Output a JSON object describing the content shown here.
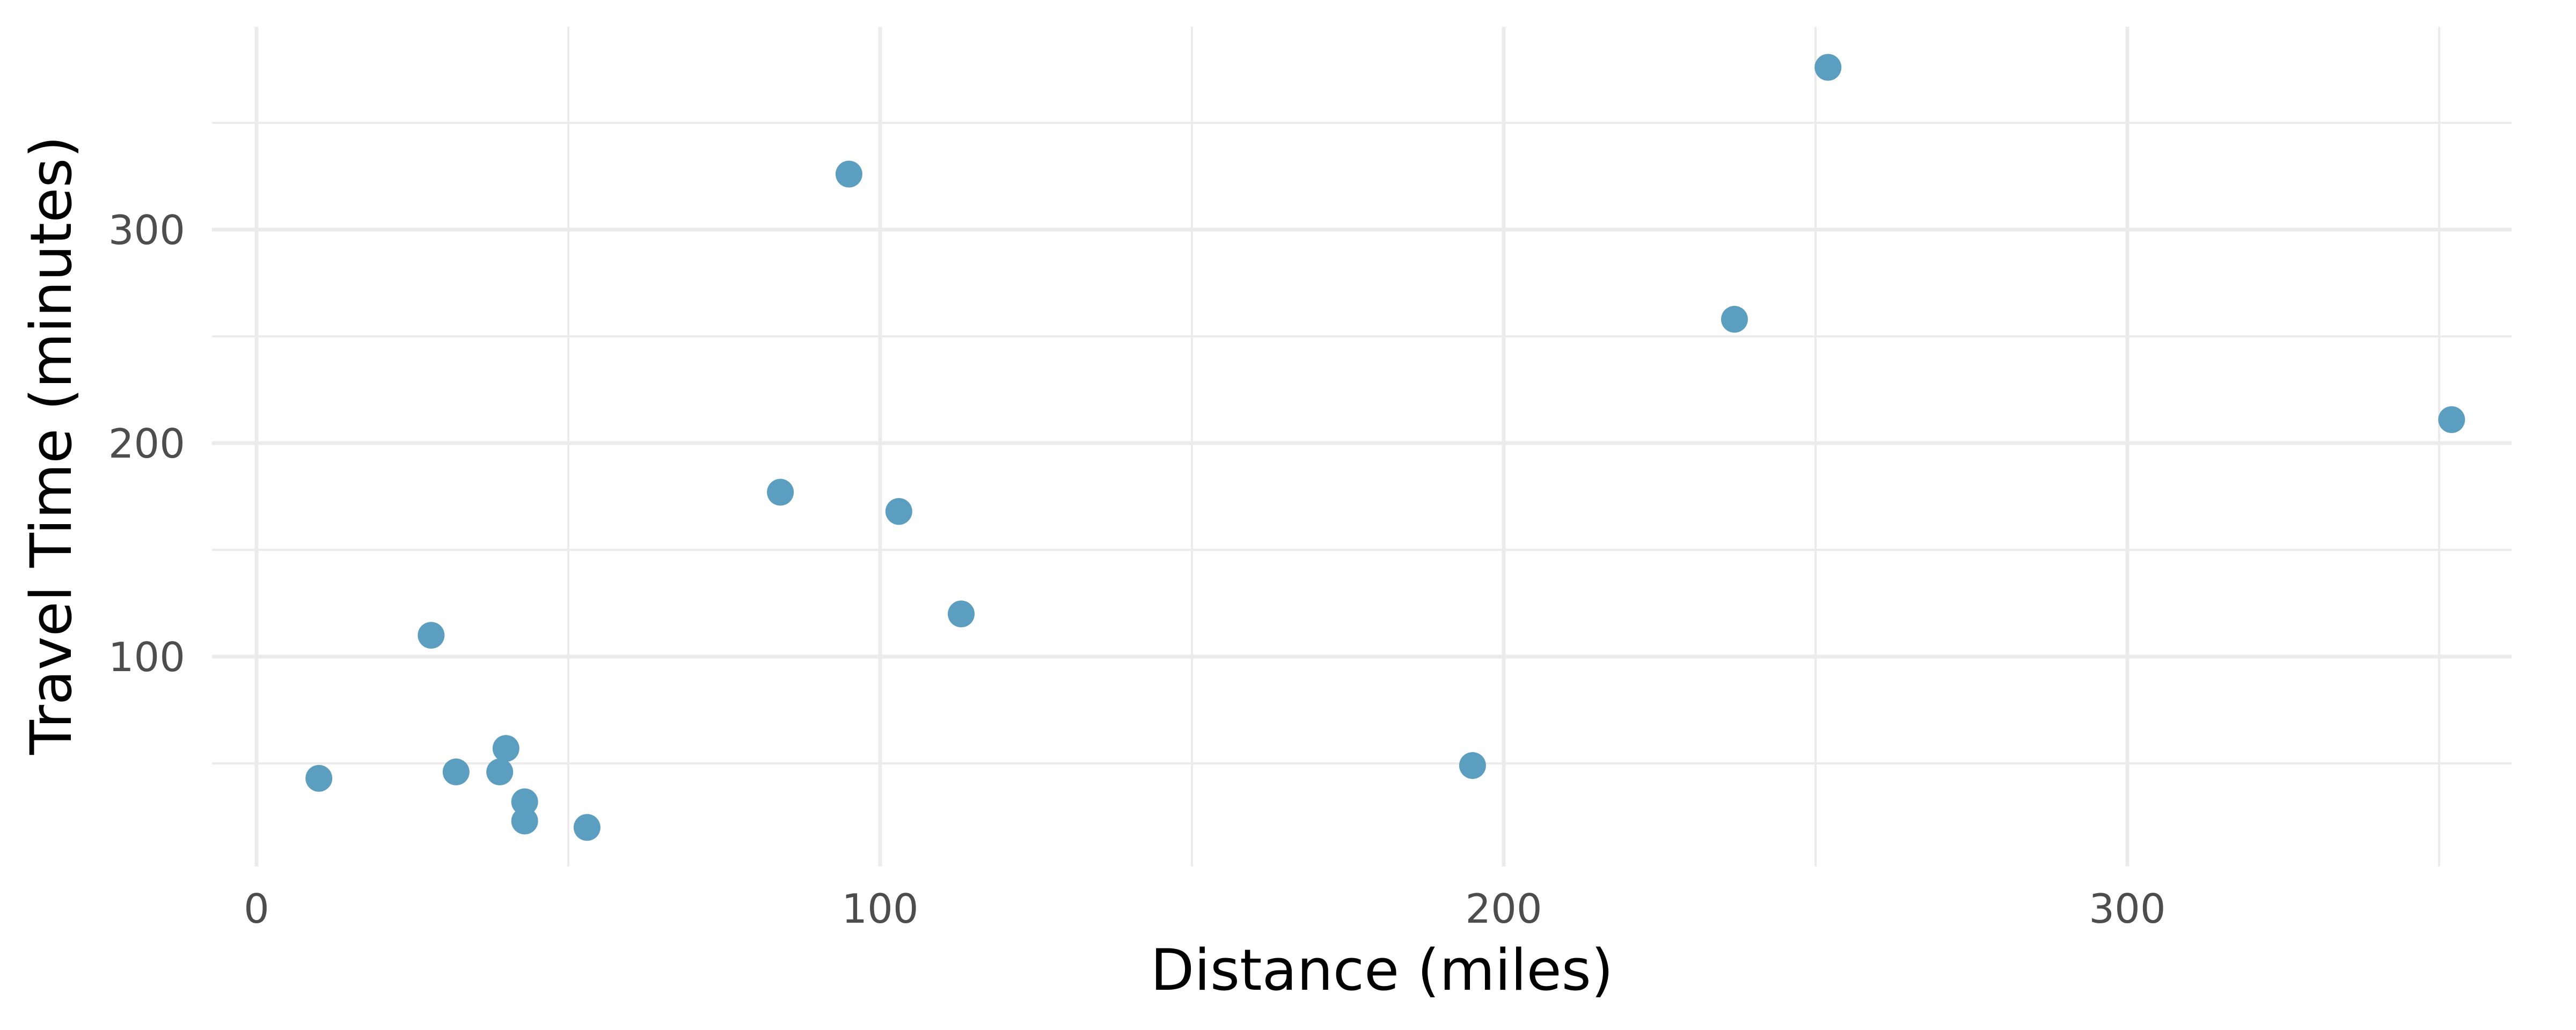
{
  "chart_data": {
    "type": "scatter",
    "title": "",
    "xlabel": "Distance (miles)",
    "ylabel": "Travel Time (minutes)",
    "xlim": [
      0,
      360
    ],
    "ylim": [
      0,
      380
    ],
    "x_ticks": [
      0,
      100,
      200,
      300
    ],
    "y_ticks": [
      100,
      200,
      300
    ],
    "x_tick_labels": [
      "0",
      "100",
      "200",
      "300"
    ],
    "y_tick_labels": [
      "100",
      "200",
      "300"
    ],
    "grid": true,
    "legend": "none",
    "point_color": "#5b9ec0",
    "series": [
      {
        "x": [
          10,
          28,
          32,
          39,
          40,
          43,
          43,
          53,
          84,
          95,
          103,
          113,
          195,
          237,
          252,
          352
        ],
        "y": [
          43,
          110,
          46,
          46,
          57,
          32,
          23,
          20,
          177,
          326,
          168,
          120,
          49,
          258,
          376,
          211
        ]
      }
    ]
  }
}
